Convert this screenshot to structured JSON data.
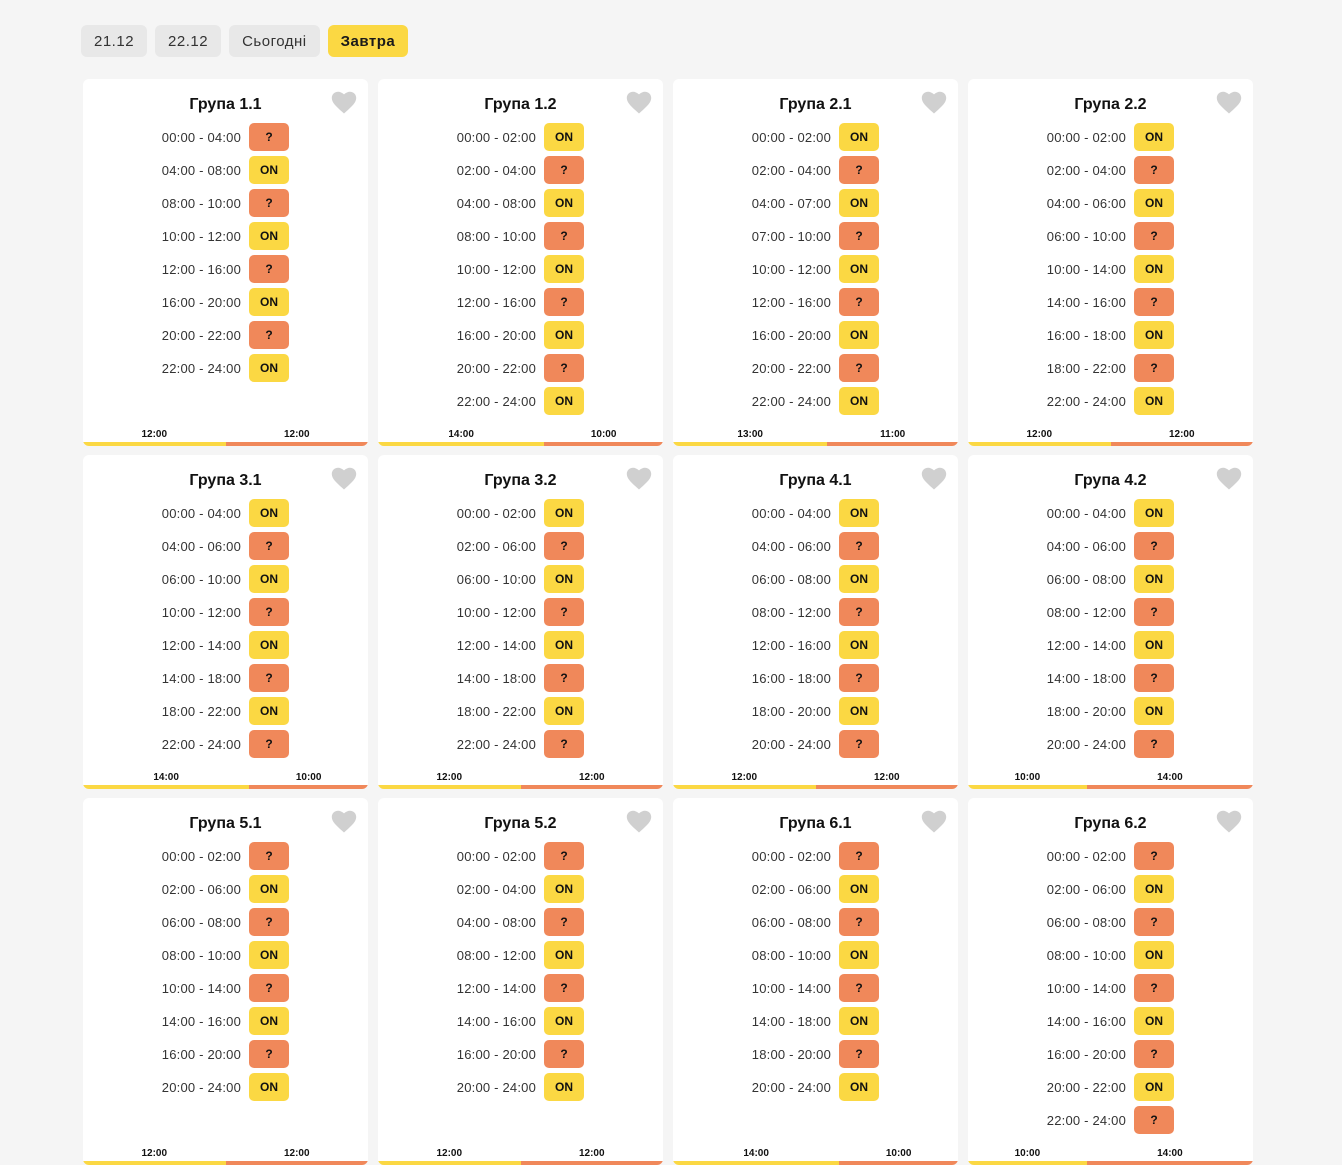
{
  "tabs": [
    {
      "label": "21.12",
      "active": false
    },
    {
      "label": "22.12",
      "active": false
    },
    {
      "label": "Сьогодні",
      "active": false
    },
    {
      "label": "Завтра",
      "active": true
    }
  ],
  "colors": {
    "on": "#fbd843",
    "maybe": "#f0885a",
    "heart": "#d0d0d0"
  },
  "groups": [
    {
      "title": "Група 1.1",
      "on_total": "12:00",
      "maybe_total": "12:00",
      "on_fraction": 0.5,
      "slots": [
        [
          "00:00 - 04:00",
          "?"
        ],
        [
          "04:00 - 08:00",
          "ON"
        ],
        [
          "08:00 - 10:00",
          "?"
        ],
        [
          "10:00 - 12:00",
          "ON"
        ],
        [
          "12:00 - 16:00",
          "?"
        ],
        [
          "16:00 - 20:00",
          "ON"
        ],
        [
          "20:00 - 22:00",
          "?"
        ],
        [
          "22:00 - 24:00",
          "ON"
        ]
      ]
    },
    {
      "title": "Група 1.2",
      "on_total": "14:00",
      "maybe_total": "10:00",
      "on_fraction": 0.5833,
      "slots": [
        [
          "00:00 - 02:00",
          "ON"
        ],
        [
          "02:00 - 04:00",
          "?"
        ],
        [
          "04:00 - 08:00",
          "ON"
        ],
        [
          "08:00 - 10:00",
          "?"
        ],
        [
          "10:00 - 12:00",
          "ON"
        ],
        [
          "12:00 - 16:00",
          "?"
        ],
        [
          "16:00 - 20:00",
          "ON"
        ],
        [
          "20:00 - 22:00",
          "?"
        ],
        [
          "22:00 - 24:00",
          "ON"
        ]
      ]
    },
    {
      "title": "Група 2.1",
      "on_total": "13:00",
      "maybe_total": "11:00",
      "on_fraction": 0.5417,
      "slots": [
        [
          "00:00 - 02:00",
          "ON"
        ],
        [
          "02:00 - 04:00",
          "?"
        ],
        [
          "04:00 - 07:00",
          "ON"
        ],
        [
          "07:00 - 10:00",
          "?"
        ],
        [
          "10:00 - 12:00",
          "ON"
        ],
        [
          "12:00 - 16:00",
          "?"
        ],
        [
          "16:00 - 20:00",
          "ON"
        ],
        [
          "20:00 - 22:00",
          "?"
        ],
        [
          "22:00 - 24:00",
          "ON"
        ]
      ]
    },
    {
      "title": "Група 2.2",
      "on_total": "12:00",
      "maybe_total": "12:00",
      "on_fraction": 0.5,
      "slots": [
        [
          "00:00 - 02:00",
          "ON"
        ],
        [
          "02:00 - 04:00",
          "?"
        ],
        [
          "04:00 - 06:00",
          "ON"
        ],
        [
          "06:00 - 10:00",
          "?"
        ],
        [
          "10:00 - 14:00",
          "ON"
        ],
        [
          "14:00 - 16:00",
          "?"
        ],
        [
          "16:00 - 18:00",
          "ON"
        ],
        [
          "18:00 - 22:00",
          "?"
        ],
        [
          "22:00 - 24:00",
          "ON"
        ]
      ]
    },
    {
      "title": "Група 3.1",
      "on_total": "14:00",
      "maybe_total": "10:00",
      "on_fraction": 0.5833,
      "slots": [
        [
          "00:00 - 04:00",
          "ON"
        ],
        [
          "04:00 - 06:00",
          "?"
        ],
        [
          "06:00 - 10:00",
          "ON"
        ],
        [
          "10:00 - 12:00",
          "?"
        ],
        [
          "12:00 - 14:00",
          "ON"
        ],
        [
          "14:00 - 18:00",
          "?"
        ],
        [
          "18:00 - 22:00",
          "ON"
        ],
        [
          "22:00 - 24:00",
          "?"
        ]
      ]
    },
    {
      "title": "Група 3.2",
      "on_total": "12:00",
      "maybe_total": "12:00",
      "on_fraction": 0.5,
      "slots": [
        [
          "00:00 - 02:00",
          "ON"
        ],
        [
          "02:00 - 06:00",
          "?"
        ],
        [
          "06:00 - 10:00",
          "ON"
        ],
        [
          "10:00 - 12:00",
          "?"
        ],
        [
          "12:00 - 14:00",
          "ON"
        ],
        [
          "14:00 - 18:00",
          "?"
        ],
        [
          "18:00 - 22:00",
          "ON"
        ],
        [
          "22:00 - 24:00",
          "?"
        ]
      ]
    },
    {
      "title": "Група 4.1",
      "on_total": "12:00",
      "maybe_total": "12:00",
      "on_fraction": 0.5,
      "slots": [
        [
          "00:00 - 04:00",
          "ON"
        ],
        [
          "04:00 - 06:00",
          "?"
        ],
        [
          "06:00 - 08:00",
          "ON"
        ],
        [
          "08:00 - 12:00",
          "?"
        ],
        [
          "12:00 - 16:00",
          "ON"
        ],
        [
          "16:00 - 18:00",
          "?"
        ],
        [
          "18:00 - 20:00",
          "ON"
        ],
        [
          "20:00 - 24:00",
          "?"
        ]
      ]
    },
    {
      "title": "Група 4.2",
      "on_total": "10:00",
      "maybe_total": "14:00",
      "on_fraction": 0.4167,
      "slots": [
        [
          "00:00 - 04:00",
          "ON"
        ],
        [
          "04:00 - 06:00",
          "?"
        ],
        [
          "06:00 - 08:00",
          "ON"
        ],
        [
          "08:00 - 12:00",
          "?"
        ],
        [
          "12:00 - 14:00",
          "ON"
        ],
        [
          "14:00 - 18:00",
          "?"
        ],
        [
          "18:00 - 20:00",
          "ON"
        ],
        [
          "20:00 - 24:00",
          "?"
        ]
      ]
    },
    {
      "title": "Група 5.1",
      "on_total": "12:00",
      "maybe_total": "12:00",
      "on_fraction": 0.5,
      "slots": [
        [
          "00:00 - 02:00",
          "?"
        ],
        [
          "02:00 - 06:00",
          "ON"
        ],
        [
          "06:00 - 08:00",
          "?"
        ],
        [
          "08:00 - 10:00",
          "ON"
        ],
        [
          "10:00 - 14:00",
          "?"
        ],
        [
          "14:00 - 16:00",
          "ON"
        ],
        [
          "16:00 - 20:00",
          "?"
        ],
        [
          "20:00 - 24:00",
          "ON"
        ]
      ]
    },
    {
      "title": "Група 5.2",
      "on_total": "12:00",
      "maybe_total": "12:00",
      "on_fraction": 0.5,
      "slots": [
        [
          "00:00 - 02:00",
          "?"
        ],
        [
          "02:00 - 04:00",
          "ON"
        ],
        [
          "04:00 - 08:00",
          "?"
        ],
        [
          "08:00 - 12:00",
          "ON"
        ],
        [
          "12:00 - 14:00",
          "?"
        ],
        [
          "14:00 - 16:00",
          "ON"
        ],
        [
          "16:00 - 20:00",
          "?"
        ],
        [
          "20:00 - 24:00",
          "ON"
        ]
      ]
    },
    {
      "title": "Група 6.1",
      "on_total": "14:00",
      "maybe_total": "10:00",
      "on_fraction": 0.5833,
      "slots": [
        [
          "00:00 - 02:00",
          "?"
        ],
        [
          "02:00 - 06:00",
          "ON"
        ],
        [
          "06:00 - 08:00",
          "?"
        ],
        [
          "08:00 - 10:00",
          "ON"
        ],
        [
          "10:00 - 14:00",
          "?"
        ],
        [
          "14:00 - 18:00",
          "ON"
        ],
        [
          "18:00 - 20:00",
          "?"
        ],
        [
          "20:00 - 24:00",
          "ON"
        ]
      ]
    },
    {
      "title": "Група 6.2",
      "on_total": "10:00",
      "maybe_total": "14:00",
      "on_fraction": 0.4167,
      "slots": [
        [
          "00:00 - 02:00",
          "?"
        ],
        [
          "02:00 - 06:00",
          "ON"
        ],
        [
          "06:00 - 08:00",
          "?"
        ],
        [
          "08:00 - 10:00",
          "ON"
        ],
        [
          "10:00 - 14:00",
          "?"
        ],
        [
          "14:00 - 16:00",
          "ON"
        ],
        [
          "16:00 - 20:00",
          "?"
        ],
        [
          "20:00 - 22:00",
          "ON"
        ],
        [
          "22:00 - 24:00",
          "?"
        ]
      ]
    }
  ]
}
